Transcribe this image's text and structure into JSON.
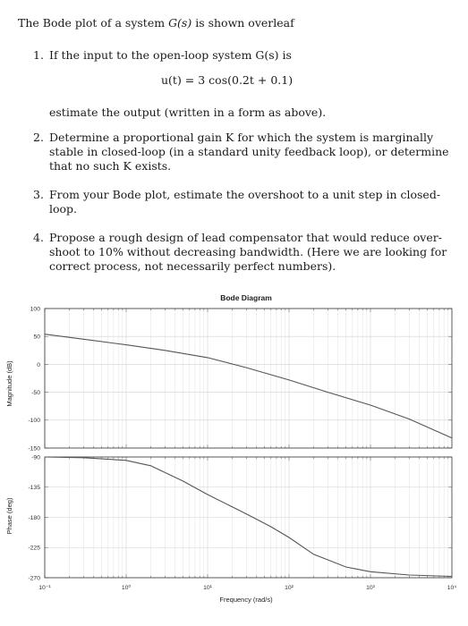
{
  "intro": {
    "pre": "The Bode plot of a system ",
    "math": "G(s)",
    "post": " is shown overleaf"
  },
  "questions": [
    {
      "number": "1.",
      "lines": [
        "If the input to the open-loop system G(s) is"
      ],
      "equation": "u(t) = 3 cos(0.2t + 0.1)",
      "after": "estimate the output (written in a form as above)."
    },
    {
      "number": "2.",
      "lines": [
        "Determine a proportional gain K for which the system is marginally",
        "stable in closed-loop (in a standard unity feedback loop), or determine",
        "that no such K exists."
      ]
    },
    {
      "number": "3.",
      "lines": [
        "From your Bode plot, estimate the overshoot to a unit step in closed-",
        "loop."
      ]
    },
    {
      "number": "4.",
      "lines": [
        "Propose a rough design of lead compensator that would reduce over-",
        "shoot to 10% without decreasing bandwidth. (Here we are looking for",
        "correct process, not necessarily perfect numbers)."
      ]
    }
  ],
  "chart_data": {
    "type": "line",
    "title": "Bode Diagram",
    "xlabel": "Frequency (rad/s)",
    "xscale": "log",
    "xlim": [
      0.1,
      10000
    ],
    "xticks": [
      0.1,
      1,
      10,
      100,
      1000,
      10000
    ],
    "xtick_labels": [
      "10⁻¹",
      "10⁰",
      "10¹",
      "10²",
      "10³",
      "10⁴"
    ],
    "grid": true,
    "panels": [
      {
        "name": "magnitude",
        "ylabel": "Magnitude (dB)",
        "ylim": [
          -150,
          100
        ],
        "yticks": [
          100,
          50,
          0,
          -50,
          -100,
          -150
        ],
        "x": [
          0.1,
          0.3,
          1,
          3,
          10,
          30,
          100,
          300,
          1000,
          3000,
          10000
        ],
        "y": [
          54,
          45,
          35,
          25,
          12,
          -6,
          -28,
          -50,
          -73,
          -98,
          -132
        ]
      },
      {
        "name": "phase",
        "ylabel": "Phase (deg)",
        "ylim": [
          -270,
          -90
        ],
        "yticks": [
          -90,
          -135,
          -180,
          -225,
          -270
        ],
        "x": [
          0.1,
          0.3,
          1,
          2,
          5,
          10,
          30,
          60,
          100,
          200,
          500,
          1000,
          3000,
          10000
        ],
        "y": [
          -90,
          -91,
          -95,
          -103,
          -126,
          -146,
          -175,
          -194,
          -210,
          -235,
          -254,
          -261,
          -266,
          -268
        ]
      }
    ]
  }
}
